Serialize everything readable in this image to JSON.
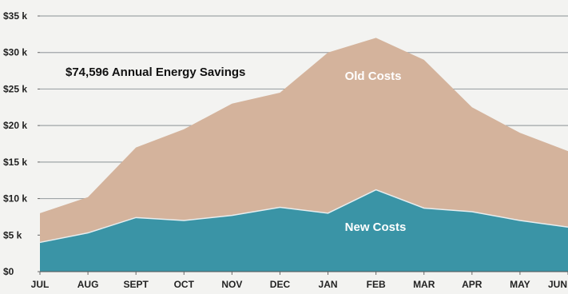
{
  "chart_data": {
    "type": "area",
    "title": "$74,596 Annual Energy Savings",
    "categories": [
      "JUL",
      "AUG",
      "SEPT",
      "OCT",
      "NOV",
      "DEC",
      "JAN",
      "FEB",
      "MAR",
      "APR",
      "MAY",
      "JUN"
    ],
    "series": [
      {
        "name": "Old Costs",
        "values": [
          8000,
          10200,
          17000,
          19500,
          23000,
          24500,
          30000,
          32000,
          29000,
          22500,
          19000,
          16500
        ],
        "color": "#d4b39c"
      },
      {
        "name": "New Costs",
        "values": [
          4000,
          5300,
          7400,
          7000,
          7700,
          8800,
          8000,
          11200,
          8700,
          8200,
          7000,
          6100
        ],
        "color": "#3a94a6"
      }
    ],
    "y_ticks": [
      {
        "value": 0,
        "label": "$0"
      },
      {
        "value": 5000,
        "label": "$5 k"
      },
      {
        "value": 10000,
        "label": "$10 k"
      },
      {
        "value": 15000,
        "label": "$15 k"
      },
      {
        "value": 20000,
        "label": "$20 k"
      },
      {
        "value": 25000,
        "label": "$25 k"
      },
      {
        "value": 30000,
        "label": "$30 k"
      },
      {
        "value": 35000,
        "label": "$35 k"
      }
    ],
    "ylim": [
      0,
      35000
    ],
    "xlabel": "",
    "ylabel": "",
    "grid": true,
    "legend": "inline",
    "grid_color": "#9fa5a8",
    "background_color": "#f3f3f1"
  }
}
